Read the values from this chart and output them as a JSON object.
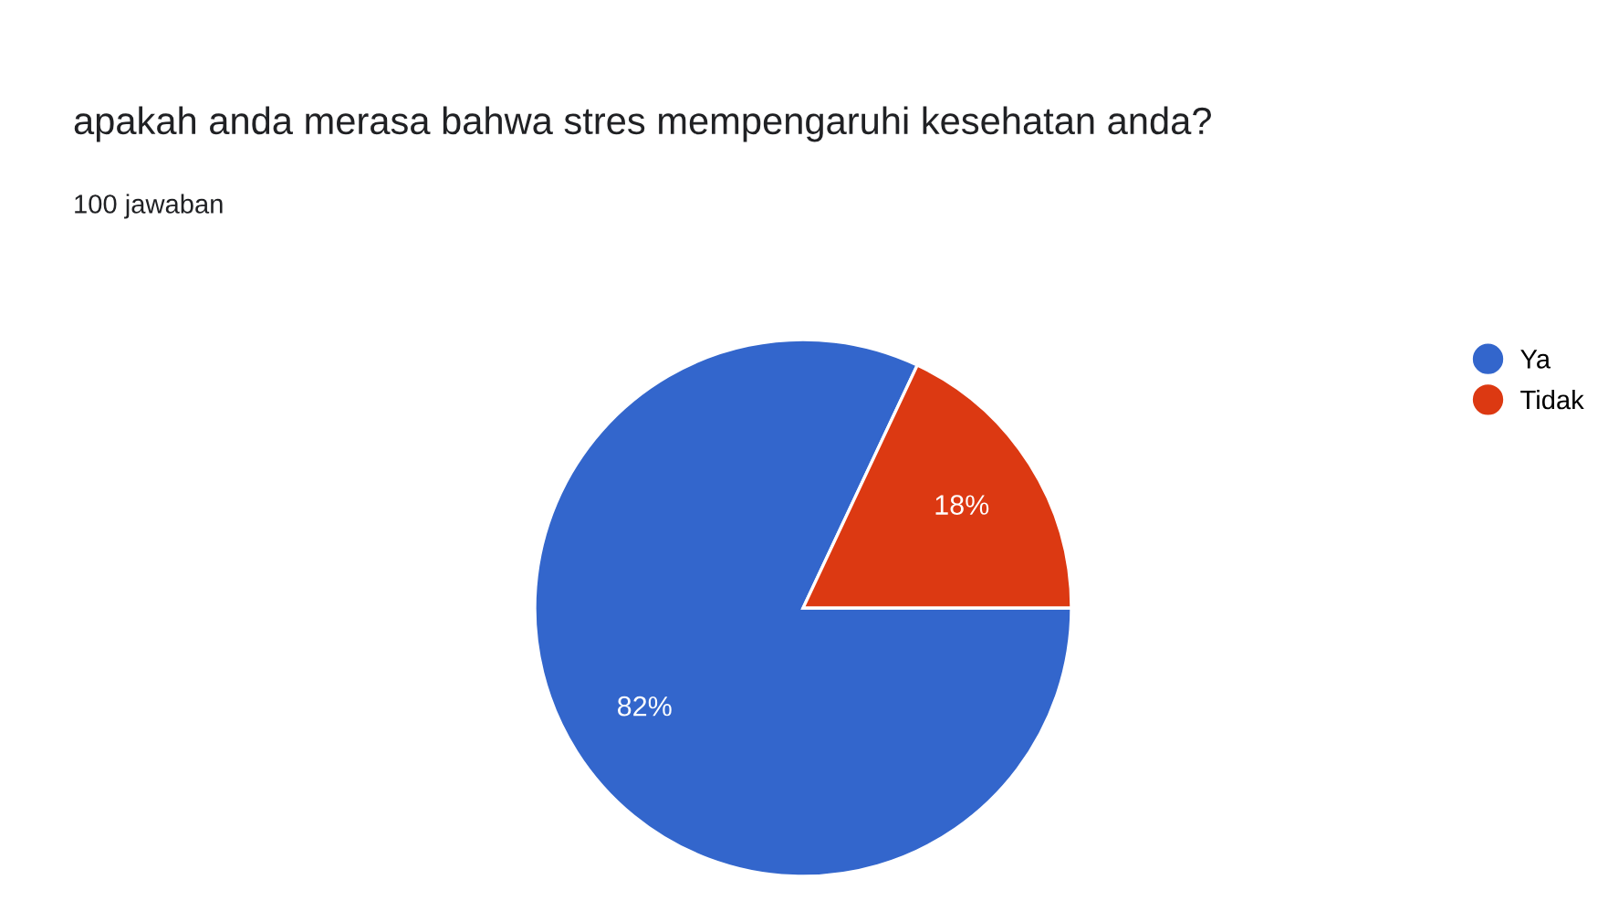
{
  "chart_data": {
    "type": "pie",
    "title": "apakah anda merasa bahwa stres mempengaruhi kesehatan anda?",
    "subtitle": "100 jawaban",
    "categories": [
      "Ya",
      "Tidak"
    ],
    "values": [
      82,
      18
    ],
    "colors": [
      "#3366cc",
      "#dc3912"
    ],
    "value_labels": [
      "82%",
      "18%"
    ],
    "legend": "top right"
  }
}
